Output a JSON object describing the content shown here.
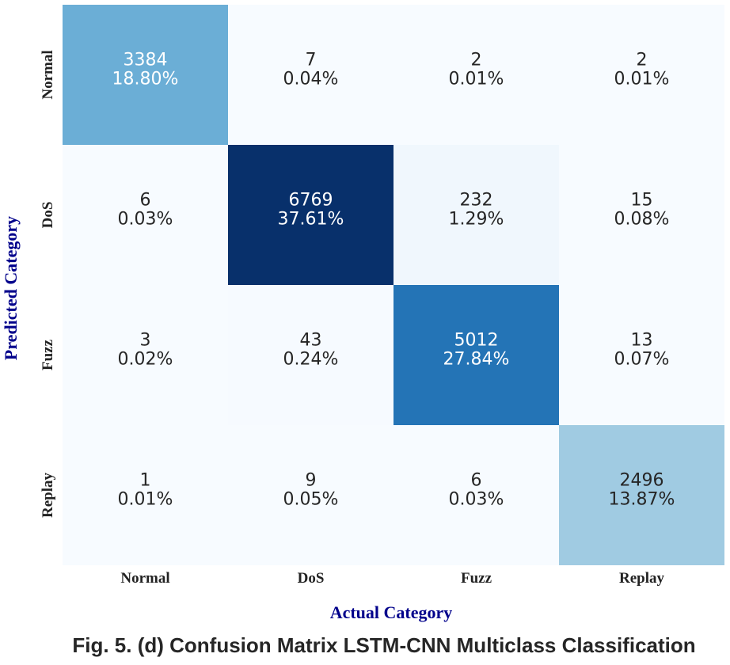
{
  "caption": "Fig. 5. (d) Confusion Matrix LSTM-CNN Multiclass Classification",
  "chart_data": {
    "type": "heatmap",
    "colormap": "Blues",
    "x_labels": [
      "Normal",
      "DoS",
      "Fuzz",
      "Replay"
    ],
    "y_labels": [
      "Normal",
      "DoS",
      "Fuzz",
      "Replay"
    ],
    "xlabel": "Actual Category",
    "ylabel": "Predicted Category",
    "axis_label_color": "#00008b",
    "values": [
      [
        3384,
        7,
        2,
        2
      ],
      [
        6,
        6769,
        232,
        15
      ],
      [
        3,
        43,
        5012,
        13
      ],
      [
        1,
        9,
        6,
        2496
      ]
    ],
    "percentages": [
      [
        "18.80%",
        "0.04%",
        "0.01%",
        "0.01%"
      ],
      [
        "0.03%",
        "37.61%",
        "1.29%",
        "0.08%"
      ],
      [
        "0.02%",
        "0.24%",
        "27.84%",
        "0.07%"
      ],
      [
        "0.01%",
        "0.05%",
        "0.03%",
        "13.87%"
      ]
    ],
    "colorbar": false,
    "grid": false
  }
}
